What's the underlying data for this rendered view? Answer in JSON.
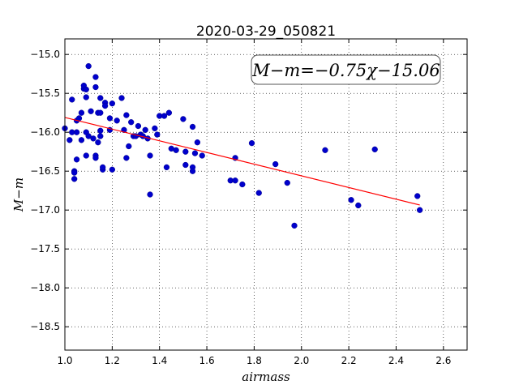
{
  "chart_data": {
    "type": "scatter",
    "title": "2020-03-29_050821",
    "xlabel": "airmass",
    "ylabel": "M−m",
    "xlim": [
      1.0,
      2.7
    ],
    "ylim": [
      -18.8,
      -14.8
    ],
    "y_inverted": true,
    "grid": true,
    "x_ticks": [
      1.0,
      1.2,
      1.4,
      1.6,
      1.8,
      2.0,
      2.2,
      2.4,
      2.6
    ],
    "x_tick_labels": [
      "1.0",
      "1.2",
      "1.4",
      "1.6",
      "1.8",
      "2.0",
      "2.2",
      "2.4",
      "2.6"
    ],
    "y_ticks": [
      -15.0,
      -15.5,
      -16.0,
      -16.5,
      -17.0,
      -17.5,
      -18.0,
      -18.5
    ],
    "y_tick_labels": [
      "−15.0",
      "−15.5",
      "−16.0",
      "−16.5",
      "−17.0",
      "−17.5",
      "−18.0",
      "−18.5"
    ],
    "annotation": "M−m=−0.75χ−15.06",
    "fit": {
      "slope": -0.75,
      "intercept": -15.06,
      "x_range": [
        1.0,
        2.5
      ],
      "color": "#ff0000"
    },
    "marker_color": "#0000cc",
    "points": [
      [
        1.0,
        -15.95
      ],
      [
        1.02,
        -16.1
      ],
      [
        1.03,
        -16.0
      ],
      [
        1.03,
        -15.58
      ],
      [
        1.04,
        -16.5
      ],
      [
        1.04,
        -16.52
      ],
      [
        1.04,
        -16.6
      ],
      [
        1.05,
        -16.35
      ],
      [
        1.05,
        -16.0
      ],
      [
        1.05,
        -15.85
      ],
      [
        1.06,
        -15.82
      ],
      [
        1.07,
        -15.75
      ],
      [
        1.07,
        -16.1
      ],
      [
        1.08,
        -15.44
      ],
      [
        1.08,
        -15.4
      ],
      [
        1.09,
        -15.45
      ],
      [
        1.09,
        -16.0
      ],
      [
        1.09,
        -16.3
      ],
      [
        1.09,
        -15.55
      ],
      [
        1.1,
        -16.05
      ],
      [
        1.1,
        -15.15
      ],
      [
        1.11,
        -15.73
      ],
      [
        1.12,
        -16.08
      ],
      [
        1.13,
        -16.3
      ],
      [
        1.13,
        -15.42
      ],
      [
        1.13,
        -16.33
      ],
      [
        1.13,
        -15.29
      ],
      [
        1.14,
        -15.75
      ],
      [
        1.14,
        -16.13
      ],
      [
        1.15,
        -15.56
      ],
      [
        1.15,
        -15.98
      ],
      [
        1.15,
        -16.05
      ],
      [
        1.15,
        -15.75
      ],
      [
        1.16,
        -16.48
      ],
      [
        1.16,
        -16.45
      ],
      [
        1.17,
        -15.62
      ],
      [
        1.17,
        -15.66
      ],
      [
        1.19,
        -15.97
      ],
      [
        1.19,
        -15.82
      ],
      [
        1.2,
        -15.63
      ],
      [
        1.2,
        -16.48
      ],
      [
        1.22,
        -15.85
      ],
      [
        1.24,
        -15.56
      ],
      [
        1.25,
        -15.97
      ],
      [
        1.26,
        -15.78
      ],
      [
        1.26,
        -16.33
      ],
      [
        1.27,
        -16.18
      ],
      [
        1.28,
        -15.87
      ],
      [
        1.29,
        -16.05
      ],
      [
        1.3,
        -16.05
      ],
      [
        1.31,
        -15.92
      ],
      [
        1.32,
        -16.03
      ],
      [
        1.33,
        -16.05
      ],
      [
        1.34,
        -15.97
      ],
      [
        1.35,
        -16.08
      ],
      [
        1.36,
        -16.3
      ],
      [
        1.36,
        -16.8
      ],
      [
        1.38,
        -15.95
      ],
      [
        1.39,
        -16.03
      ],
      [
        1.4,
        -15.79
      ],
      [
        1.42,
        -15.79
      ],
      [
        1.43,
        -16.45
      ],
      [
        1.44,
        -15.75
      ],
      [
        1.45,
        -16.21
      ],
      [
        1.47,
        -16.23
      ],
      [
        1.5,
        -15.83
      ],
      [
        1.51,
        -16.42
      ],
      [
        1.51,
        -16.25
      ],
      [
        1.54,
        -16.45
      ],
      [
        1.54,
        -16.5
      ],
      [
        1.54,
        -15.93
      ],
      [
        1.55,
        -16.27
      ],
      [
        1.56,
        -16.13
      ],
      [
        1.58,
        -16.3
      ],
      [
        1.7,
        -16.62
      ],
      [
        1.72,
        -16.62
      ],
      [
        1.72,
        -16.33
      ],
      [
        1.75,
        -16.67
      ],
      [
        1.79,
        -16.14
      ],
      [
        1.82,
        -16.78
      ],
      [
        1.89,
        -16.41
      ],
      [
        1.94,
        -16.65
      ],
      [
        1.97,
        -17.2
      ],
      [
        2.1,
        -16.23
      ],
      [
        2.21,
        -16.87
      ],
      [
        2.24,
        -16.94
      ],
      [
        2.31,
        -16.22
      ],
      [
        2.49,
        -16.82
      ],
      [
        2.5,
        -17.0
      ]
    ]
  }
}
